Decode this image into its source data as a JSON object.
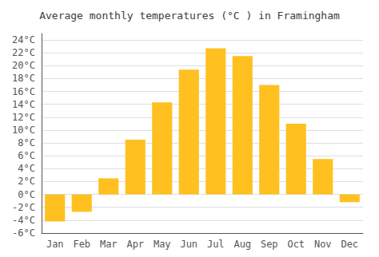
{
  "chart_data": {
    "type": "bar",
    "title": "Average monthly temperatures (°C ) in Framingham",
    "categories": [
      "Jan",
      "Feb",
      "Mar",
      "Apr",
      "May",
      "Jun",
      "Jul",
      "Aug",
      "Sep",
      "Oct",
      "Nov",
      "Dec"
    ],
    "values": [
      -4.2,
      -2.7,
      2.5,
      8.5,
      14.3,
      19.4,
      22.7,
      21.5,
      17.0,
      11.0,
      5.5,
      -1.2
    ],
    "color": "#FFC020",
    "ylim": [
      -6,
      25
    ],
    "yticks": [
      {
        "value": -6,
        "label": "-6°C"
      },
      {
        "value": -4,
        "label": "-4°C"
      },
      {
        "value": -2,
        "label": "-2°C"
      },
      {
        "value": 0,
        "label": "0°C"
      },
      {
        "value": 2,
        "label": "2°C"
      },
      {
        "value": 4,
        "label": "4°C"
      },
      {
        "value": 6,
        "label": "6°C"
      },
      {
        "value": 8,
        "label": "8°C"
      },
      {
        "value": 10,
        "label": "10°C"
      },
      {
        "value": 12,
        "label": "12°C"
      },
      {
        "value": 14,
        "label": "14°C"
      },
      {
        "value": 16,
        "label": "16°C"
      },
      {
        "value": 18,
        "label": "18°C"
      },
      {
        "value": 20,
        "label": "20°C"
      },
      {
        "value": 22,
        "label": "22°C"
      },
      {
        "value": 24,
        "label": "24°C"
      }
    ],
    "grid": true
  }
}
